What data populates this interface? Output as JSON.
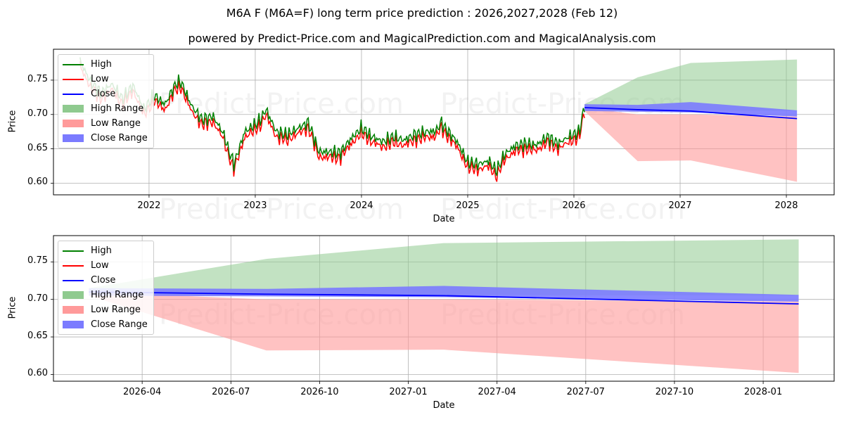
{
  "title": "M6A F (M6A=F) long term price prediction : 2026,2027,2028 (Feb 12)",
  "subtitle": "powered by Predict-Price.com and MagicalPrediction.com and MagicalAnalysis.com",
  "watermark": "Predict-Price.com",
  "colors": {
    "high": "#008000",
    "low": "#ff0000",
    "close": "#0000ff",
    "high_range": "#8fca8f",
    "low_range": "#ff9a9a",
    "close_range": "#7b7bff",
    "grid": "#b0b0b0"
  },
  "legend": [
    "High",
    "Low",
    "Close",
    "High Range",
    "Low Range",
    "Close Range"
  ],
  "chart_data": [
    {
      "type": "line",
      "title": "",
      "xlabel": "Date",
      "ylabel": "Price",
      "xlim": [
        2021.1,
        2028.45
      ],
      "ylim": [
        0.583,
        0.795
      ],
      "xticks": [
        2022,
        2023,
        2024,
        2025,
        2026,
        2027,
        2028
      ],
      "xtick_labels": [
        "2022",
        "2023",
        "2024",
        "2025",
        "2026",
        "2027",
        "2028"
      ],
      "yticks": [
        0.6,
        0.65,
        0.7,
        0.75
      ],
      "ytick_labels": [
        "0.60",
        "0.65",
        "0.70",
        "0.75"
      ],
      "grid": true,
      "legend_position": "upper-left",
      "history": {
        "x": [
          2021.35,
          2021.45,
          2021.55,
          2021.65,
          2021.75,
          2021.85,
          2021.95,
          2022.05,
          2022.15,
          2022.25,
          2022.3,
          2022.4,
          2022.5,
          2022.6,
          2022.7,
          2022.75,
          2022.8,
          2022.9,
          2023.0,
          2023.05,
          2023.1,
          2023.2,
          2023.3,
          2023.4,
          2023.5,
          2023.6,
          2023.7,
          2023.8,
          2023.9,
          2024.0,
          2024.1,
          2024.2,
          2024.3,
          2024.4,
          2024.5,
          2024.6,
          2024.7,
          2024.75,
          2024.8,
          2024.9,
          2025.0,
          2025.1,
          2025.2,
          2025.27,
          2025.35,
          2025.45,
          2025.55,
          2025.65,
          2025.75,
          2025.85,
          2025.95,
          2026.05,
          2026.1
        ],
        "close": [
          0.775,
          0.745,
          0.728,
          0.742,
          0.72,
          0.74,
          0.705,
          0.725,
          0.712,
          0.742,
          0.745,
          0.71,
          0.69,
          0.695,
          0.67,
          0.645,
          0.625,
          0.672,
          0.683,
          0.69,
          0.705,
          0.672,
          0.668,
          0.677,
          0.686,
          0.643,
          0.643,
          0.642,
          0.662,
          0.678,
          0.665,
          0.658,
          0.665,
          0.66,
          0.668,
          0.672,
          0.673,
          0.686,
          0.675,
          0.658,
          0.628,
          0.625,
          0.63,
          0.615,
          0.64,
          0.652,
          0.655,
          0.653,
          0.665,
          0.655,
          0.665,
          0.672,
          0.71
        ]
      },
      "forecast": {
        "x": [
          2026.1,
          2026.6,
          2027.1,
          2028.1
        ],
        "close": [
          0.71,
          0.707,
          0.705,
          0.694
        ],
        "high_range": {
          "upper": [
            0.715,
            0.754,
            0.775,
            0.78
          ],
          "lower": [
            0.705,
            0.705,
            0.706,
            0.705
          ]
        },
        "low_range": {
          "upper": [
            0.71,
            0.7,
            0.7,
            0.697
          ],
          "lower": [
            0.705,
            0.632,
            0.633,
            0.602
          ]
        },
        "close_range": {
          "upper": [
            0.715,
            0.714,
            0.718,
            0.706
          ],
          "lower": [
            0.705,
            0.704,
            0.703,
            0.697
          ]
        }
      }
    },
    {
      "type": "line",
      "title": "",
      "xlabel": "Date",
      "ylabel": "Price",
      "xlim": [
        2026.0,
        2028.2
      ],
      "ylim": [
        0.591,
        0.785
      ],
      "xticks": [
        2026.25,
        2026.5,
        2026.75,
        2027.0,
        2027.25,
        2027.5,
        2027.75,
        2028.0
      ],
      "xtick_labels": [
        "2026-04",
        "2026-07",
        "2026-10",
        "2027-01",
        "2027-04",
        "2027-07",
        "2027-10",
        "2028-01"
      ],
      "yticks": [
        0.6,
        0.65,
        0.7,
        0.75
      ],
      "ytick_labels": [
        "0.60",
        "0.65",
        "0.70",
        "0.75"
      ],
      "grid": true,
      "legend_position": "upper-left",
      "forecast": {
        "x": [
          2026.1,
          2026.6,
          2027.1,
          2028.1
        ],
        "close": [
          0.71,
          0.707,
          0.705,
          0.694
        ],
        "high_range": {
          "upper": [
            0.715,
            0.754,
            0.775,
            0.78
          ],
          "lower": [
            0.705,
            0.705,
            0.706,
            0.705
          ]
        },
        "low_range": {
          "upper": [
            0.71,
            0.7,
            0.7,
            0.697
          ],
          "lower": [
            0.705,
            0.632,
            0.633,
            0.602
          ]
        },
        "close_range": {
          "upper": [
            0.715,
            0.714,
            0.718,
            0.706
          ],
          "lower": [
            0.705,
            0.704,
            0.703,
            0.697
          ]
        }
      }
    }
  ]
}
